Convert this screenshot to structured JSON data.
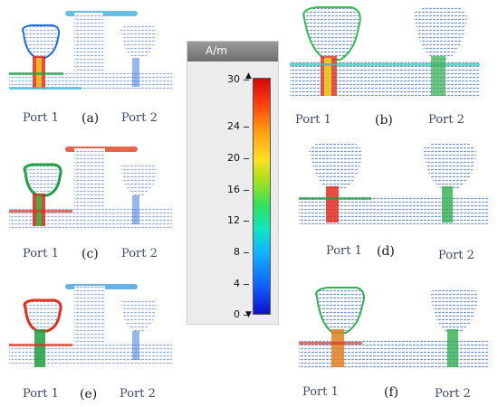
{
  "panels": [
    {
      "id": "a",
      "letter": "(a)",
      "port1": "Port 1",
      "port2": "Port 2"
    },
    {
      "id": "b",
      "letter": "(b)",
      "port1": "Port 1",
      "port2": "Port 2"
    },
    {
      "id": "c",
      "letter": "(c)",
      "port1": "Port 1",
      "port2": "Port 2"
    },
    {
      "id": "d",
      "letter": "(d)",
      "port1": "Port 1",
      "port2": "Port 2"
    },
    {
      "id": "e",
      "letter": "(e)",
      "port1": "Port 1",
      "port2": "Port 2"
    },
    {
      "id": "f",
      "letter": "(f)",
      "port1": "Port 1",
      "port2": "Port 2"
    }
  ],
  "scale": {
    "unit": "A/m",
    "ticks": [
      "30",
      "24",
      "20",
      "16",
      "12",
      "8",
      "4",
      "0"
    ],
    "min": 0,
    "max": 30,
    "colors": [
      "#1010c8",
      "#10b4ff",
      "#30e060",
      "#ffe020",
      "#ff3a10",
      "#d00808"
    ]
  }
}
